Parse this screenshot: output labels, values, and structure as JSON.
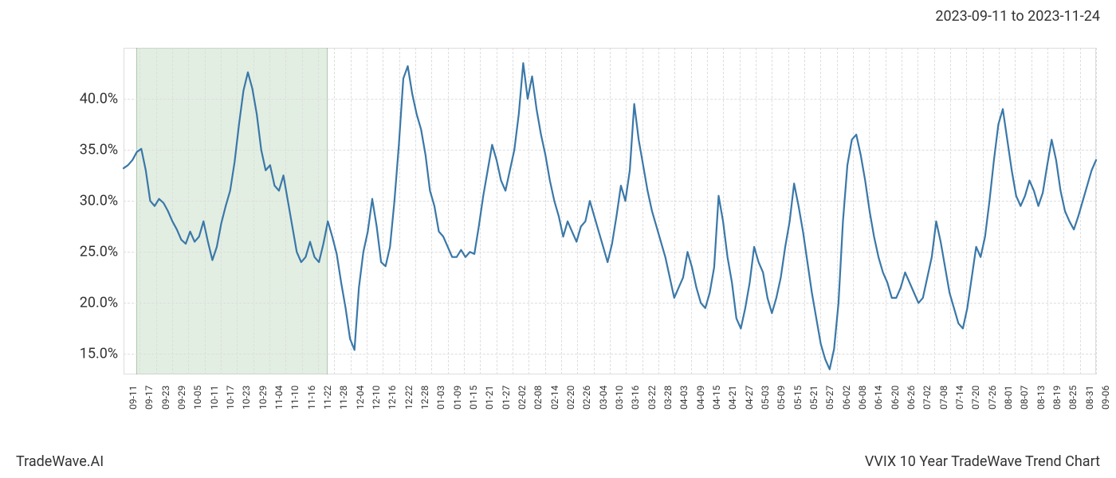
{
  "header": {
    "date_range": "2023-09-11 to 2023-11-24"
  },
  "footer": {
    "left": "TradeWave.AI",
    "right": "VVIX 10 Year TradeWave Trend Chart"
  },
  "chart": {
    "type": "line",
    "line_color": "#3a78a8",
    "line_width": 2.2,
    "background_color": "#ffffff",
    "grid_color": "#dddddd",
    "grid_style": "dashed",
    "ylim": [
      13,
      45
    ],
    "yticks": [
      15,
      20,
      25,
      30,
      35,
      40
    ],
    "ytick_labels": [
      "15.0%",
      "20.0%",
      "25.0%",
      "30.0%",
      "35.0%",
      "40.0%"
    ],
    "ytick_fontsize": 18,
    "xtick_fontsize": 12,
    "xtick_rotation": -90,
    "highlight": {
      "color": "rgba(160, 200, 160, 0.3)",
      "start_index": 4,
      "end_index": 40
    },
    "x_labels": [
      "09-11",
      "09-17",
      "09-23",
      "09-29",
      "10-05",
      "10-11",
      "10-17",
      "10-23",
      "10-29",
      "11-04",
      "11-10",
      "11-16",
      "11-22",
      "11-28",
      "12-04",
      "12-10",
      "12-16",
      "12-22",
      "12-28",
      "01-03",
      "01-09",
      "01-15",
      "01-21",
      "01-27",
      "02-02",
      "02-08",
      "02-14",
      "02-20",
      "02-26",
      "03-04",
      "03-10",
      "03-16",
      "03-22",
      "03-28",
      "04-03",
      "04-09",
      "04-15",
      "04-21",
      "04-27",
      "05-03",
      "05-09",
      "05-15",
      "05-21",
      "05-27",
      "06-02",
      "06-08",
      "06-14",
      "06-20",
      "06-26",
      "07-02",
      "07-08",
      "07-14",
      "07-20",
      "07-26",
      "08-01",
      "08-07",
      "08-13",
      "08-19",
      "08-25",
      "08-31",
      "09-06"
    ],
    "values": [
      33.2,
      33.5,
      34.0,
      34.8,
      35.1,
      33.0,
      30.0,
      29.5,
      30.2,
      29.8,
      29.0,
      28.0,
      27.2,
      26.2,
      25.8,
      27.0,
      26.0,
      26.5,
      28.0,
      26.0,
      24.2,
      25.5,
      27.8,
      29.5,
      31.0,
      33.8,
      37.5,
      40.8,
      42.6,
      41.0,
      38.5,
      35.0,
      33.0,
      33.5,
      31.5,
      31.0,
      32.5,
      30.0,
      27.5,
      25.0,
      24.0,
      24.5,
      26.0,
      24.5,
      24.0,
      25.8,
      28.0,
      26.5,
      24.8,
      22.0,
      19.5,
      16.5,
      15.4,
      21.5,
      25.0,
      27.0,
      30.2,
      27.5,
      24.0,
      23.6,
      25.5,
      30.0,
      35.5,
      42.0,
      43.2,
      40.5,
      38.5,
      37.0,
      34.5,
      31.0,
      29.5,
      27.0,
      26.5,
      25.5,
      24.5,
      24.5,
      25.2,
      24.5,
      25.0,
      24.8,
      27.5,
      30.5,
      33.0,
      35.5,
      34.0,
      32.0,
      31.0,
      33.0,
      35.0,
      38.5,
      43.5,
      40.0,
      42.2,
      39.0,
      36.5,
      34.5,
      32.0,
      30.0,
      28.5,
      26.5,
      28.0,
      27.0,
      26.0,
      27.5,
      28.0,
      30.0,
      28.5,
      27.0,
      25.5,
      24.0,
      25.8,
      28.5,
      31.5,
      30.0,
      33.0,
      39.5,
      36.0,
      33.5,
      31.0,
      29.0,
      27.5,
      26.0,
      24.5,
      22.5,
      20.5,
      21.5,
      22.5,
      25.0,
      23.5,
      21.5,
      20.0,
      19.5,
      21.0,
      23.5,
      30.5,
      28.0,
      24.5,
      22.0,
      18.5,
      17.5,
      19.5,
      22.0,
      25.5,
      24.0,
      23.0,
      20.5,
      19.0,
      20.5,
      22.5,
      25.5,
      28.0,
      31.7,
      29.5,
      27.0,
      24.0,
      21.0,
      18.5,
      16.0,
      14.5,
      13.5,
      15.5,
      20.0,
      28.0,
      33.5,
      36.0,
      36.5,
      34.5,
      32.0,
      29.0,
      26.5,
      24.5,
      23.0,
      22.0,
      20.5,
      20.5,
      21.5,
      23.0,
      22.0,
      21.0,
      20.0,
      20.5,
      22.5,
      24.5,
      28.0,
      26.0,
      23.5,
      21.0,
      19.5,
      18.0,
      17.5,
      19.5,
      22.5,
      25.5,
      24.5,
      26.5,
      30.0,
      34.0,
      37.5,
      39.0,
      36.0,
      33.0,
      30.5,
      29.5,
      30.5,
      32.0,
      31.0,
      29.5,
      30.8,
      33.5,
      36.0,
      34.0,
      31.0,
      29.0,
      28.0,
      27.2,
      28.5,
      30.0,
      31.5,
      33.0,
      34.0
    ]
  }
}
